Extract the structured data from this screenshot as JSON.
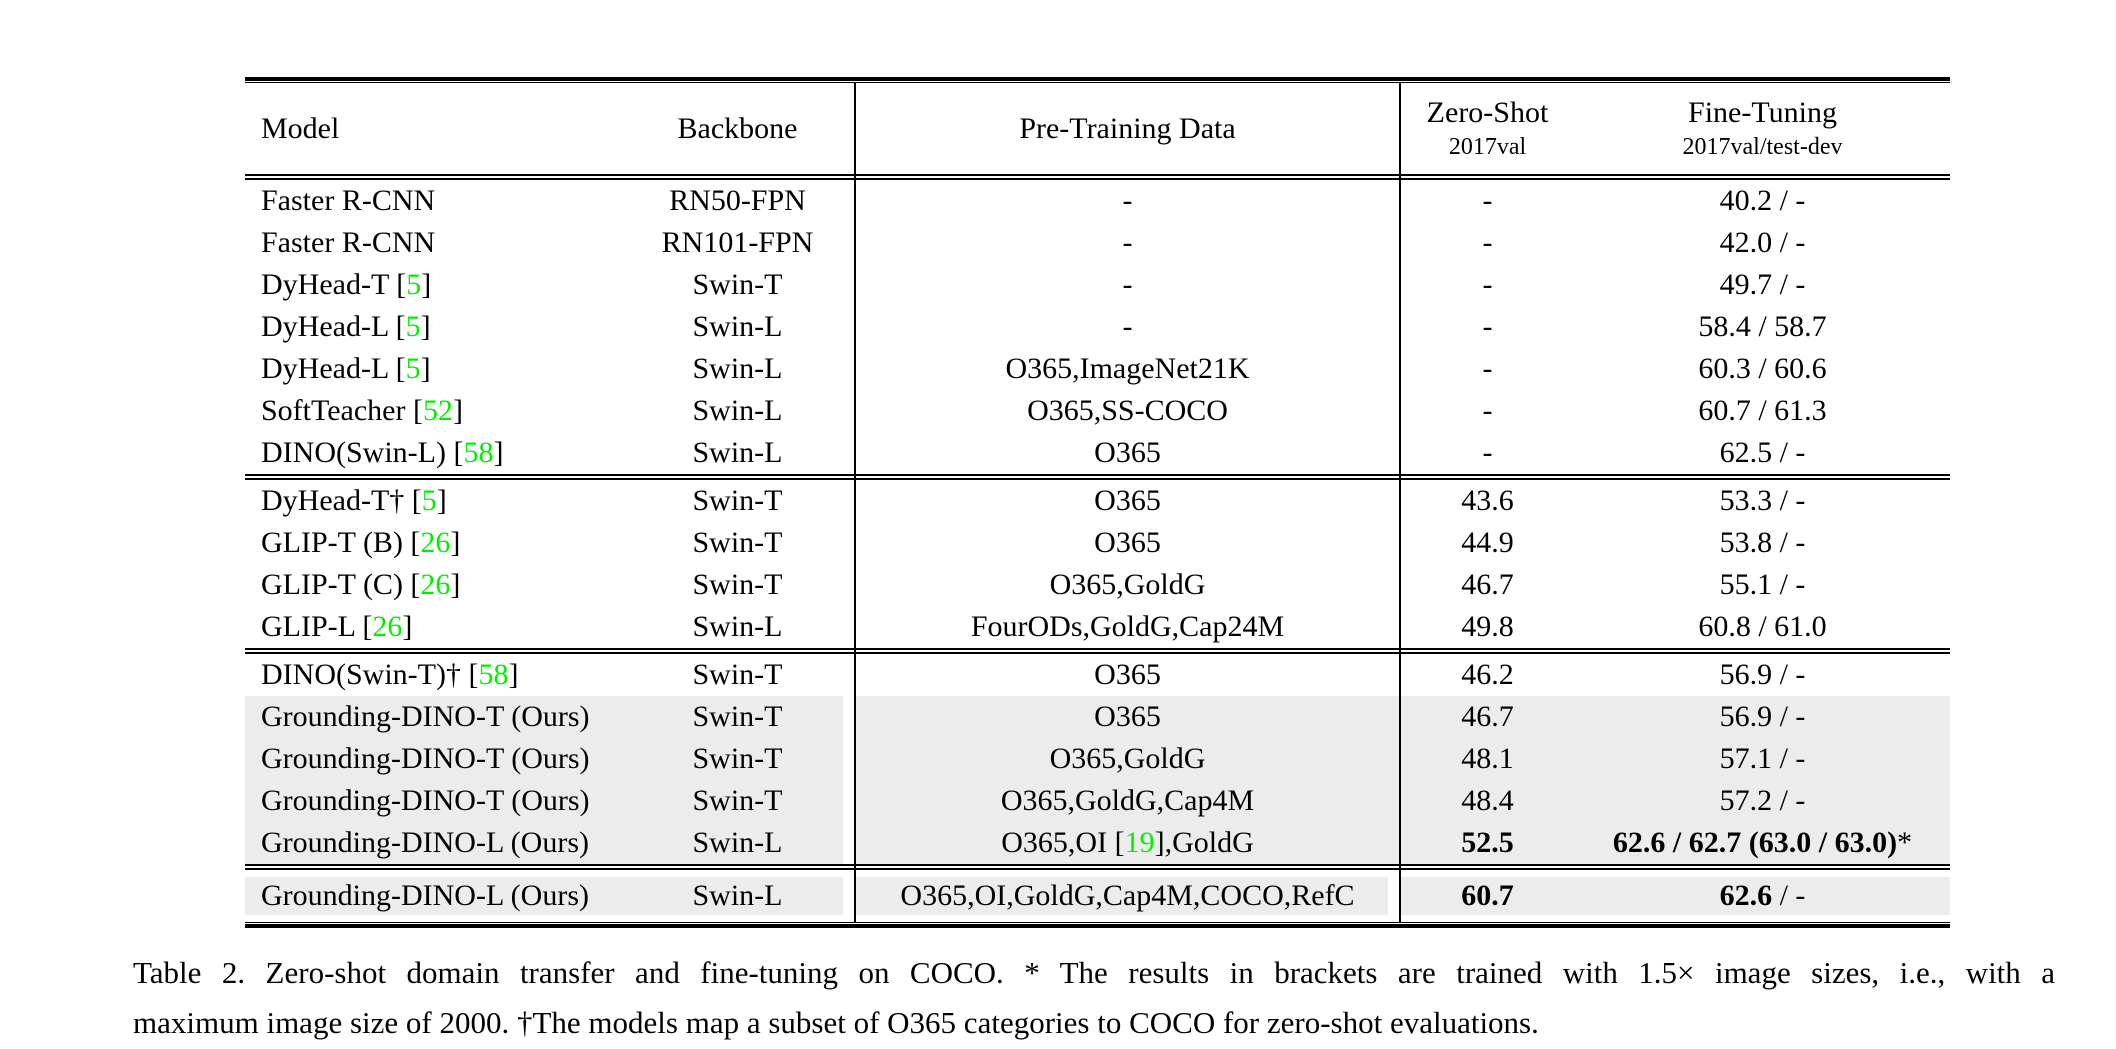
{
  "table": {
    "header": {
      "model": "Model",
      "backbone": "Backbone",
      "pretraining": "Pre-Training Data",
      "zeroshot_title": "Zero-Shot",
      "zeroshot_sub": "2017val",
      "finetuning_title": "Fine-Tuning",
      "finetuning_sub": "2017val/test-dev"
    },
    "colors": {
      "citation_green": "#00f000",
      "row_highlight_gray": "#ececec"
    },
    "blocks": [
      {
        "rows": [
          {
            "model": [
              {
                "t": "Faster R-CNN"
              }
            ],
            "backbone": [
              {
                "t": "RN50-FPN"
              }
            ],
            "pretrain": [
              {
                "t": "-"
              }
            ],
            "zs": [
              {
                "t": "-"
              }
            ],
            "ft": [
              {
                "t": "40.2 / -"
              }
            ]
          },
          {
            "model": [
              {
                "t": "Faster R-CNN"
              }
            ],
            "backbone": [
              {
                "t": "RN101-FPN"
              }
            ],
            "pretrain": [
              {
                "t": "-"
              }
            ],
            "zs": [
              {
                "t": "-"
              }
            ],
            "ft": [
              {
                "t": "42.0 / -"
              }
            ]
          },
          {
            "model": [
              {
                "t": "DyHead-T ["
              },
              {
                "t": "5",
                "green": true
              },
              {
                "t": "]"
              }
            ],
            "backbone": [
              {
                "t": "Swin-T"
              }
            ],
            "pretrain": [
              {
                "t": "-"
              }
            ],
            "zs": [
              {
                "t": "-"
              }
            ],
            "ft": [
              {
                "t": "49.7 / -"
              }
            ]
          },
          {
            "model": [
              {
                "t": "DyHead-L ["
              },
              {
                "t": "5",
                "green": true
              },
              {
                "t": "]"
              }
            ],
            "backbone": [
              {
                "t": "Swin-L"
              }
            ],
            "pretrain": [
              {
                "t": "-"
              }
            ],
            "zs": [
              {
                "t": "-"
              }
            ],
            "ft": [
              {
                "t": "58.4 / 58.7"
              }
            ]
          },
          {
            "model": [
              {
                "t": "DyHead-L ["
              },
              {
                "t": "5",
                "green": true
              },
              {
                "t": "]"
              }
            ],
            "backbone": [
              {
                "t": "Swin-L"
              }
            ],
            "pretrain": [
              {
                "t": "O365,ImageNet21K"
              }
            ],
            "zs": [
              {
                "t": "-"
              }
            ],
            "ft": [
              {
                "t": "60.3 / 60.6"
              }
            ]
          },
          {
            "model": [
              {
                "t": "SoftTeacher ["
              },
              {
                "t": "52",
                "green": true
              },
              {
                "t": "]"
              }
            ],
            "backbone": [
              {
                "t": "Swin-L"
              }
            ],
            "pretrain": [
              {
                "t": "O365,SS-COCO"
              }
            ],
            "zs": [
              {
                "t": "-"
              }
            ],
            "ft": [
              {
                "t": "60.7 / 61.3"
              }
            ]
          },
          {
            "model": [
              {
                "t": "DINO(Swin-L) ["
              },
              {
                "t": "58",
                "green": true
              },
              {
                "t": "]"
              }
            ],
            "backbone": [
              {
                "t": "Swin-L"
              }
            ],
            "pretrain": [
              {
                "t": "O365"
              }
            ],
            "zs": [
              {
                "t": "-"
              }
            ],
            "ft": [
              {
                "t": "62.5 / -"
              }
            ]
          }
        ]
      },
      {
        "rows": [
          {
            "model": [
              {
                "t": "DyHead-T† ["
              },
              {
                "t": "5",
                "green": true
              },
              {
                "t": "]"
              }
            ],
            "backbone": [
              {
                "t": "Swin-T"
              }
            ],
            "pretrain": [
              {
                "t": "O365"
              }
            ],
            "zs": [
              {
                "t": "43.6"
              }
            ],
            "ft": [
              {
                "t": "53.3 / -"
              }
            ]
          },
          {
            "model": [
              {
                "t": "GLIP-T (B) ["
              },
              {
                "t": "26",
                "green": true
              },
              {
                "t": "]"
              }
            ],
            "backbone": [
              {
                "t": "Swin-T"
              }
            ],
            "pretrain": [
              {
                "t": "O365"
              }
            ],
            "zs": [
              {
                "t": "44.9"
              }
            ],
            "ft": [
              {
                "t": "53.8 / -"
              }
            ]
          },
          {
            "model": [
              {
                "t": "GLIP-T (C) ["
              },
              {
                "t": "26",
                "green": true
              },
              {
                "t": "]"
              }
            ],
            "backbone": [
              {
                "t": "Swin-T"
              }
            ],
            "pretrain": [
              {
                "t": "O365,GoldG"
              }
            ],
            "zs": [
              {
                "t": "46.7"
              }
            ],
            "ft": [
              {
                "t": "55.1 / -"
              }
            ]
          },
          {
            "model": [
              {
                "t": "GLIP-L ["
              },
              {
                "t": "26",
                "green": true
              },
              {
                "t": "]"
              }
            ],
            "backbone": [
              {
                "t": "Swin-L"
              }
            ],
            "pretrain": [
              {
                "t": "FourODs,GoldG,Cap24M"
              }
            ],
            "zs": [
              {
                "t": "49.8"
              }
            ],
            "ft": [
              {
                "t": "60.8 / 61.0"
              }
            ]
          }
        ]
      },
      {
        "rows": [
          {
            "model": [
              {
                "t": "DINO(Swin-T)† ["
              },
              {
                "t": "58",
                "green": true
              },
              {
                "t": "]"
              }
            ],
            "backbone": [
              {
                "t": "Swin-T"
              }
            ],
            "pretrain": [
              {
                "t": "O365"
              }
            ],
            "zs": [
              {
                "t": "46.2"
              }
            ],
            "ft": [
              {
                "t": "56.9 / -"
              }
            ]
          },
          {
            "gray": true,
            "model": [
              {
                "t": "Grounding-DINO-T (Ours)"
              }
            ],
            "backbone": [
              {
                "t": "Swin-T"
              }
            ],
            "pretrain": [
              {
                "t": "O365"
              }
            ],
            "zs": [
              {
                "t": "46.7"
              }
            ],
            "ft": [
              {
                "t": "56.9 / -"
              }
            ]
          },
          {
            "gray": true,
            "model": [
              {
                "t": "Grounding-DINO-T (Ours)"
              }
            ],
            "backbone": [
              {
                "t": "Swin-T"
              }
            ],
            "pretrain": [
              {
                "t": "O365,GoldG"
              }
            ],
            "zs": [
              {
                "t": "48.1"
              }
            ],
            "ft": [
              {
                "t": "57.1 / -"
              }
            ]
          },
          {
            "gray": true,
            "model": [
              {
                "t": "Grounding-DINO-T (Ours)"
              }
            ],
            "backbone": [
              {
                "t": "Swin-T"
              }
            ],
            "pretrain": [
              {
                "t": "O365,GoldG,Cap4M"
              }
            ],
            "zs": [
              {
                "t": "48.4"
              }
            ],
            "ft": [
              {
                "t": "57.2 / -"
              }
            ]
          },
          {
            "gray": true,
            "model": [
              {
                "t": "Grounding-DINO-L (Ours)"
              }
            ],
            "backbone": [
              {
                "t": "Swin-L"
              }
            ],
            "pretrain": [
              {
                "t": "O365,OI ["
              },
              {
                "t": "19",
                "green": true
              },
              {
                "t": "],GoldG"
              }
            ],
            "zs": [
              {
                "t": "52.5",
                "bold": true
              }
            ],
            "ft": [
              {
                "t": "62.6 / 62.7 (63.0 / 63.0)",
                "bold": true
              },
              {
                "t": "*"
              }
            ]
          }
        ]
      },
      {
        "rows": [
          {
            "gray": true,
            "stripe3": true,
            "model": [
              {
                "t": "Grounding-DINO-L (Ours)"
              }
            ],
            "backbone": [
              {
                "t": "Swin-L"
              }
            ],
            "pretrain": [
              {
                "t": "O365,OI,GoldG,Cap4M,COCO,RefC"
              }
            ],
            "zs": [
              {
                "t": "60.7",
                "bold": true
              }
            ],
            "ft": [
              {
                "t": "62.6",
                "bold": true
              },
              {
                "t": " / -"
              }
            ]
          }
        ]
      }
    ]
  },
  "caption": {
    "line1": "Table 2.  Zero-shot domain transfer and fine-tuning on COCO. * The results in brackets are trained with 1.5× image sizes, i.e., with a",
    "line2": "maximum image size of 2000. †The models map a subset of O365 categories to COCO for zero-shot evaluations."
  }
}
